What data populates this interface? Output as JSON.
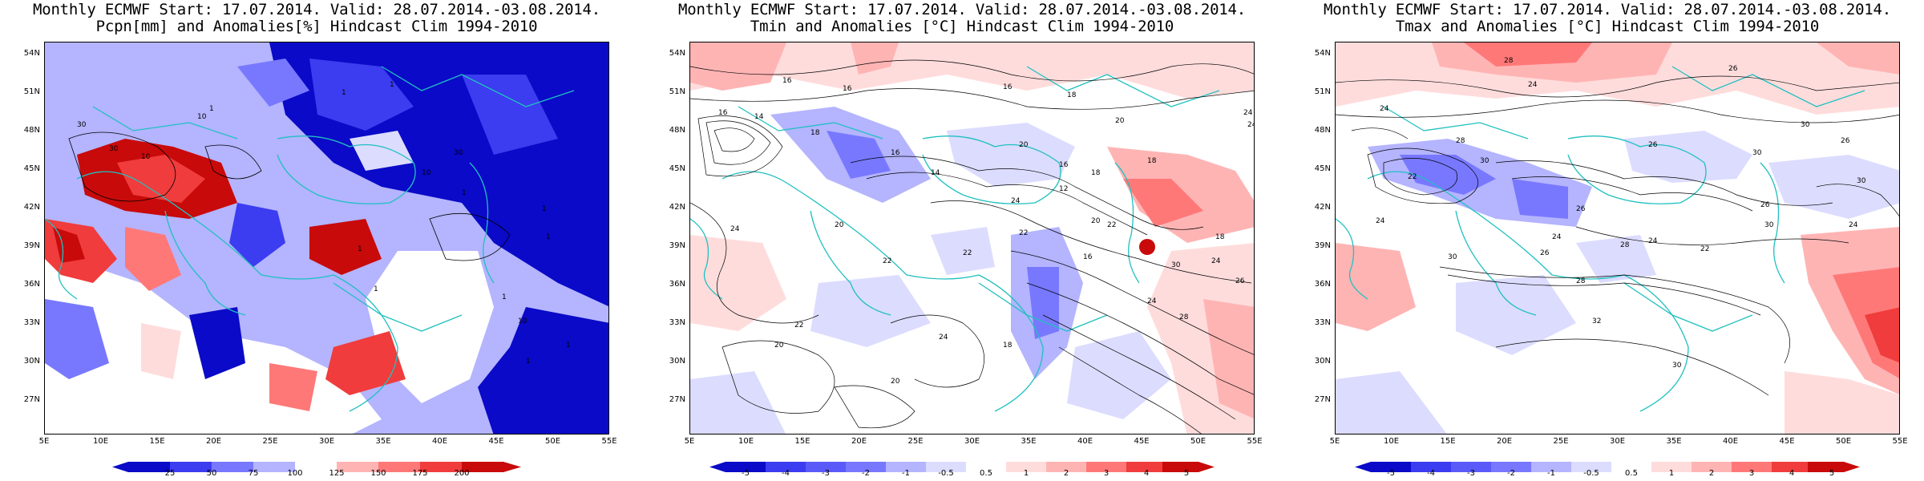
{
  "colors": {
    "dark_blue": "#0a0ac8",
    "blue": "#3c3cf0",
    "mid_blue": "#7878ff",
    "light_blue": "#b4b4ff",
    "pale_blue": "#dcdcff",
    "pale_red": "#ffdcdc",
    "light_red": "#ffb4b4",
    "mid_red": "#ff7878",
    "red": "#f03c3c",
    "dark_red": "#c80a0a",
    "coast_line": "#20c0c0",
    "contour": "#000000"
  },
  "panels": [
    {
      "title_line1": "Monthly ECMWF Start: 17.07.2014. Valid: 28.07.2014.-03.08.2014.",
      "title_line2": "Pcpn[mm] and Anomalies[%] Hindcast Clim 1994-2010",
      "lat_labels": [
        "54N",
        "51N",
        "48N",
        "45N",
        "42N",
        "39N",
        "36N",
        "33N",
        "30N",
        "27N"
      ],
      "lon_labels": [
        "5E",
        "10E",
        "15E",
        "20E",
        "25E",
        "30E",
        "35E",
        "40E",
        "45E",
        "50E",
        "55E"
      ],
      "colorbar_labels": [
        "25",
        "50",
        "75",
        "100",
        "125",
        "150",
        "175",
        "200"
      ],
      "contour_labels": [
        "30",
        "10",
        "30",
        "10",
        "1",
        "1",
        "1",
        "30",
        "1",
        "10",
        "1",
        "1",
        "1",
        "1",
        "1",
        "10",
        "1",
        "1"
      ]
    },
    {
      "title_line1": "Monthly ECMWF Start: 17.07.2014. Valid: 28.07.2014.-03.08.2014.",
      "title_line2": "Tmin and Anomalies [°C] Hindcast Clim 1994-2010",
      "lat_labels": [
        "54N",
        "51N",
        "48N",
        "45N",
        "42N",
        "39N",
        "36N",
        "33N",
        "30N",
        "27N"
      ],
      "lon_labels": [
        "5E",
        "10E",
        "15E",
        "20E",
        "25E",
        "30E",
        "35E",
        "40E",
        "45E",
        "50E",
        "55E"
      ],
      "colorbar_labels": [
        "-5",
        "-4",
        "-3",
        "-2",
        "-1",
        "-0.5",
        "0.5",
        "1",
        "2",
        "3",
        "4",
        "5"
      ],
      "contour_labels": [
        "16",
        "16",
        "16",
        "18",
        "16",
        "14",
        "18",
        "20",
        "24",
        "24",
        "18",
        "16",
        "14",
        "20",
        "16",
        "18",
        "12",
        "20",
        "22",
        "24",
        "22",
        "16",
        "24",
        "18",
        "30",
        "28",
        "22",
        "24",
        "26",
        "24",
        "20",
        "22",
        "22",
        "20",
        "24",
        "18",
        "20"
      ]
    },
    {
      "title_line1": "Monthly ECMWF Start: 17.07.2014. Valid: 28.07.2014.-03.08.2014.",
      "title_line2": "Tmax and Anomalies [°C] Hindcast Clim 1994-2010",
      "lat_labels": [
        "54N",
        "51N",
        "48N",
        "45N",
        "42N",
        "39N",
        "36N",
        "33N",
        "30N",
        "27N"
      ],
      "lon_labels": [
        "5E",
        "10E",
        "15E",
        "20E",
        "25E",
        "30E",
        "35E",
        "40E",
        "45E",
        "50E",
        "55E"
      ],
      "colorbar_labels": [
        "-5",
        "-4",
        "-3",
        "-2",
        "-1",
        "-0.5",
        "0.5",
        "1",
        "2",
        "3",
        "4",
        "5"
      ],
      "contour_labels": [
        "28",
        "26",
        "24",
        "24",
        "30",
        "26",
        "24",
        "28",
        "30",
        "28",
        "26",
        "30",
        "24",
        "22",
        "26",
        "24",
        "28",
        "26",
        "22",
        "24",
        "26",
        "30",
        "30",
        "30",
        "30",
        "32"
      ]
    }
  ]
}
